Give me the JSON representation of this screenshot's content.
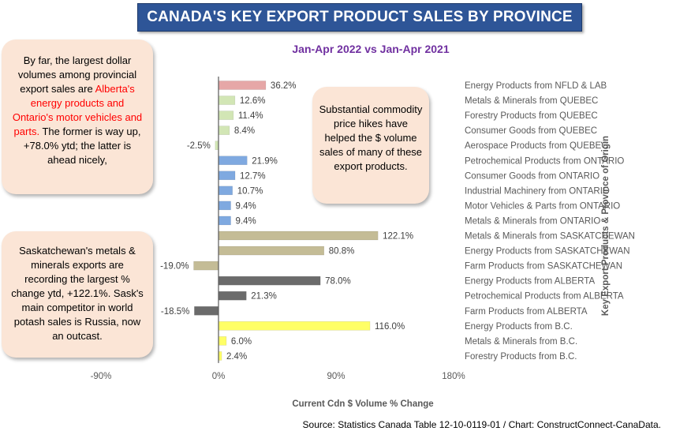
{
  "title": "CANADA'S KEY EXPORT PRODUCT SALES BY PROVINCE",
  "subtitle": "Jan-Apr 2022 vs Jan-Apr 2021",
  "callouts": {
    "left_top": {
      "text_before": "By far, the largest dollar volumes among provincial export sales are ",
      "highlight": "Alberta's energy products and Ontario's motor vehicles and parts.",
      "text_after": " The former is way up, +78.0% ytd; the latter is ahead nicely,"
    },
    "middle": "Substantial commodity price hikes have helped the $ volume sales of many of these export products.",
    "left_bottom": "Saskatchewan's metals & minerals exports are recording the largest % change ytd, +122.1%. Sask's main competitor in world potash sales is Russia, now an outcast."
  },
  "source": "Source: Statistics Canada Table 12-10-0119-01 / Chart: ConstructConnect-CanaData.",
  "chart_data": {
    "type": "bar",
    "orientation": "horizontal",
    "xlabel": "Current Cdn $ Volume % Change",
    "ylabel": "Key Export Products & Province of Origin",
    "xlim": [
      -90,
      180
    ],
    "xticks": [
      "-90%",
      "0%",
      "90%",
      "180%"
    ],
    "grid": false,
    "categories": [
      "Energy Products from NFLD & LAB",
      "Metals & Minerals from QUEBEC",
      "Forestry Products from QUEBEC",
      "Consumer Goods from QUEBEC",
      "Aerospace Products from QUEBEC",
      "Petrochemical Products from ONTARIO",
      "Consumer Goods from ONTARIO",
      "Industrial Machinery from ONTARIO",
      "Motor Vehicles & Parts from ONTARIO",
      "Metals & Minerals from ONTARIO",
      "Metals & Minerals from SASKATCHEWAN",
      "Energy Products from SASKATCHEWAN",
      "Farm Products from SASKATCHEWAN",
      "Energy Products from ALBERTA",
      "Petrochemical Products from ALBERTA",
      "Farm Products from ALBERTA",
      "Energy Products from B.C.",
      "Metals & Minerals from B.C.",
      "Forestry Products from B.C."
    ],
    "values": [
      36.2,
      12.6,
      11.4,
      8.4,
      -2.5,
      21.9,
      12.7,
      10.7,
      9.4,
      9.4,
      122.1,
      80.8,
      -19.0,
      78.0,
      21.3,
      -18.5,
      116.0,
      6.0,
      2.4
    ],
    "value_labels": [
      "36.2%",
      "12.6%",
      "11.4%",
      "8.4%",
      "-2.5%",
      "21.9%",
      "12.7%",
      "10.7%",
      "9.4%",
      "9.4%",
      "122.1%",
      "80.8%",
      "-19.0%",
      "78.0%",
      "21.3%",
      "-18.5%",
      "116.0%",
      "6.0%",
      "2.4%"
    ],
    "colors": [
      "#e6a7a7",
      "#d2e6b5",
      "#d2e6b5",
      "#d2e6b5",
      "#d2e6b5",
      "#7fa9e0",
      "#7fa9e0",
      "#7fa9e0",
      "#7fa9e0",
      "#7fa9e0",
      "#c4bc96",
      "#c4bc96",
      "#c4bc96",
      "#6b6b6b",
      "#6b6b6b",
      "#6b6b6b",
      "#ffff66",
      "#ffff66",
      "#ffff66"
    ]
  }
}
